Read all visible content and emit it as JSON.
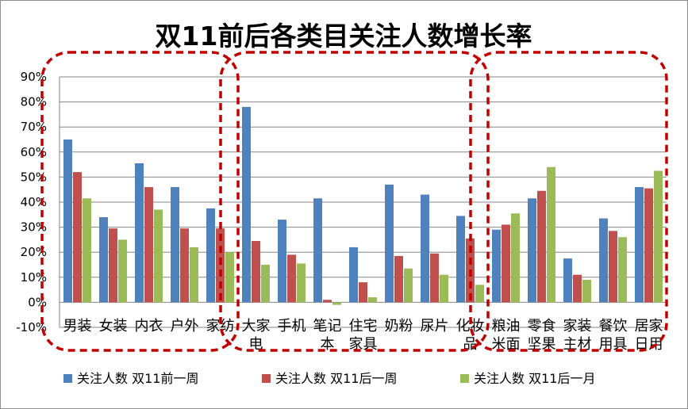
{
  "chart_data": {
    "type": "bar",
    "title": "双11前后各类目关注人数增长率",
    "xlabel": "",
    "ylabel": "",
    "ylim": [
      -0.1,
      0.9
    ],
    "yticks": [
      "-10%",
      "0%",
      "10%",
      "20%",
      "30%",
      "40%",
      "50%",
      "60%",
      "70%",
      "80%",
      "90%"
    ],
    "grid": true,
    "legend_position": "bottom",
    "categories": [
      "男装",
      "女装",
      "内衣",
      "户外",
      "家纺",
      "大家电",
      "手机",
      "笔记本",
      "住宅家具",
      "奶粉",
      "尿片",
      "化妆品",
      "粮油米面",
      "零食坚果",
      "家装主材",
      "餐饮用具",
      "居家日用"
    ],
    "category_lines": [
      [
        "男装"
      ],
      [
        "女装"
      ],
      [
        "内衣"
      ],
      [
        "户外"
      ],
      [
        "家纺"
      ],
      [
        "大家",
        "电"
      ],
      [
        "手机"
      ],
      [
        "笔记",
        "本"
      ],
      [
        "住宅",
        "家具"
      ],
      [
        "奶粉"
      ],
      [
        "尿片"
      ],
      [
        "化妆",
        "品"
      ],
      [
        "粮油",
        "米面"
      ],
      [
        "零食",
        "坚果"
      ],
      [
        "家装",
        "主材"
      ],
      [
        "餐饮",
        "用具"
      ],
      [
        "居家",
        "日用"
      ]
    ],
    "series": [
      {
        "name": "关注人数  双11前一周",
        "color": "#4f81bd",
        "values": [
          0.65,
          0.34,
          0.555,
          0.46,
          0.375,
          0.78,
          0.33,
          0.415,
          0.22,
          0.47,
          0.43,
          0.345,
          0.29,
          0.415,
          0.175,
          0.335,
          0.46
        ]
      },
      {
        "name": "关注人数  双11后一周",
        "color": "#c0504d",
        "values": [
          0.52,
          0.295,
          0.46,
          0.295,
          0.295,
          0.245,
          0.19,
          0.01,
          0.08,
          0.185,
          0.195,
          0.255,
          0.31,
          0.445,
          0.11,
          0.285,
          0.455
        ]
      },
      {
        "name": "关注人数  双11后一月",
        "color": "#9bbb59",
        "values": [
          0.415,
          0.25,
          0.37,
          0.22,
          0.2,
          0.15,
          0.155,
          -0.01,
          0.02,
          0.135,
          0.11,
          0.07,
          0.355,
          0.54,
          0.09,
          0.26,
          0.525
        ]
      }
    ],
    "highlight_groups": [
      {
        "color": "#c00000",
        "from": "男装",
        "to": "家纺"
      },
      {
        "color": "#c00000",
        "from": "大家电",
        "to": "化妆品"
      },
      {
        "color": "#c00000",
        "from": "粮油米面",
        "to": "居家日用"
      }
    ]
  }
}
